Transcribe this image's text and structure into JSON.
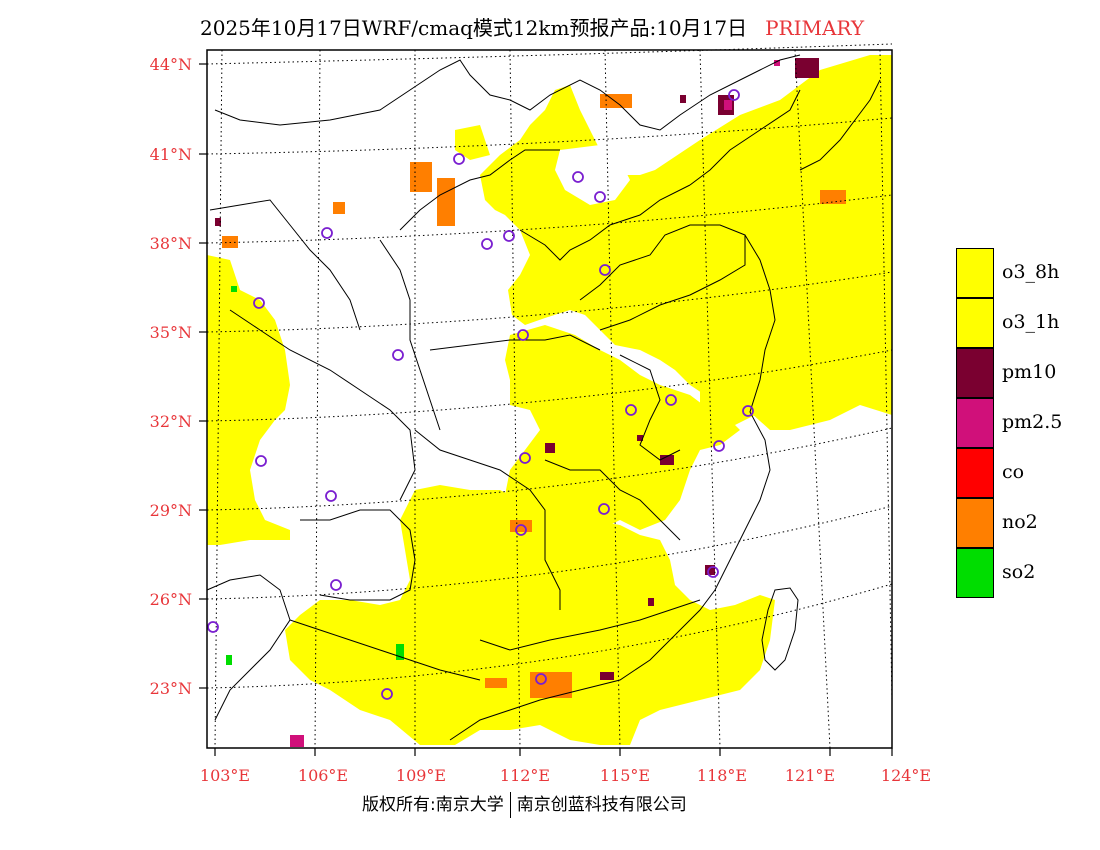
{
  "title": {
    "main": "2025年10月17日WRF/cmaq模式12km预报产品:10月17日",
    "flag": "PRIMARY"
  },
  "axes": {
    "lat_labels": [
      "44°N",
      "41°N",
      "38°N",
      "35°N",
      "32°N",
      "29°N",
      "26°N",
      "23°N"
    ],
    "lon_labels": [
      "103°E",
      "106°E",
      "109°E",
      "112°E",
      "115°E",
      "118°E",
      "121°E",
      "124°E"
    ]
  },
  "legend": {
    "items": [
      {
        "label": "o3_8h",
        "color": "#ffff00"
      },
      {
        "label": "o3_1h",
        "color": "#ffff00"
      },
      {
        "label": "pm10",
        "color": "#7a0030"
      },
      {
        "label": "pm2.5",
        "color": "#d0107a"
      },
      {
        "label": "co",
        "color": "#ff0000"
      },
      {
        "label": "no2",
        "color": "#ff7f00"
      },
      {
        "label": "so2",
        "color": "#00dd00"
      }
    ]
  },
  "footer": {
    "left": "版权所有:南京大学",
    "right": "南京创蓝科技有限公司"
  },
  "colors": {
    "o3": "#ffff00",
    "pm10": "#7a0030",
    "pm25": "#d0107a",
    "no2": "#ff7f00",
    "so2": "#00dd00",
    "station": "#7a1fd0",
    "label_red": "#e8363a"
  }
}
